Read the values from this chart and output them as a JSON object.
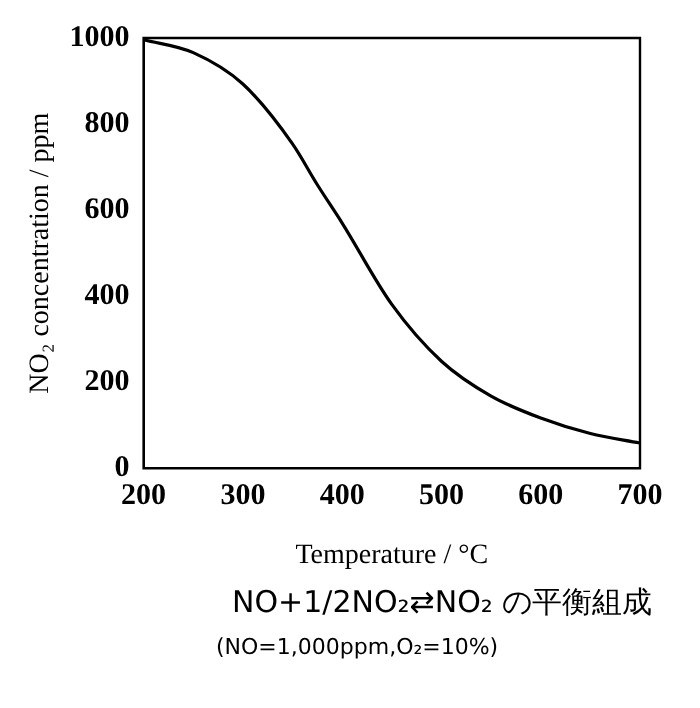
{
  "chart_data": {
    "type": "line",
    "xlabel": "Temperature / °C",
    "ylabel": "NO₂ concentration / ppm",
    "annotations": [
      "NO+1/2NO₂⇄NO₂ の平衡組成",
      "(NO=1,000ppm,O₂=10%)"
    ],
    "x": [
      200,
      250,
      300,
      350,
      375,
      400,
      450,
      500,
      550,
      600,
      650,
      700
    ],
    "series": [
      {
        "color": "#000000",
        "values": [
          996,
          966,
          893,
          754,
          659,
          570,
          381,
          249,
          168,
          117,
          81,
          59
        ]
      }
    ],
    "xlim": [
      200,
      700
    ],
    "xticks": [
      200,
      300,
      400,
      500,
      600,
      700
    ],
    "ylim": [
      0,
      1000
    ],
    "yticks": [
      0,
      200,
      400,
      600,
      800,
      1000
    ],
    "grid": false,
    "legend": false,
    "marker": "none",
    "line_style": "solid"
  }
}
